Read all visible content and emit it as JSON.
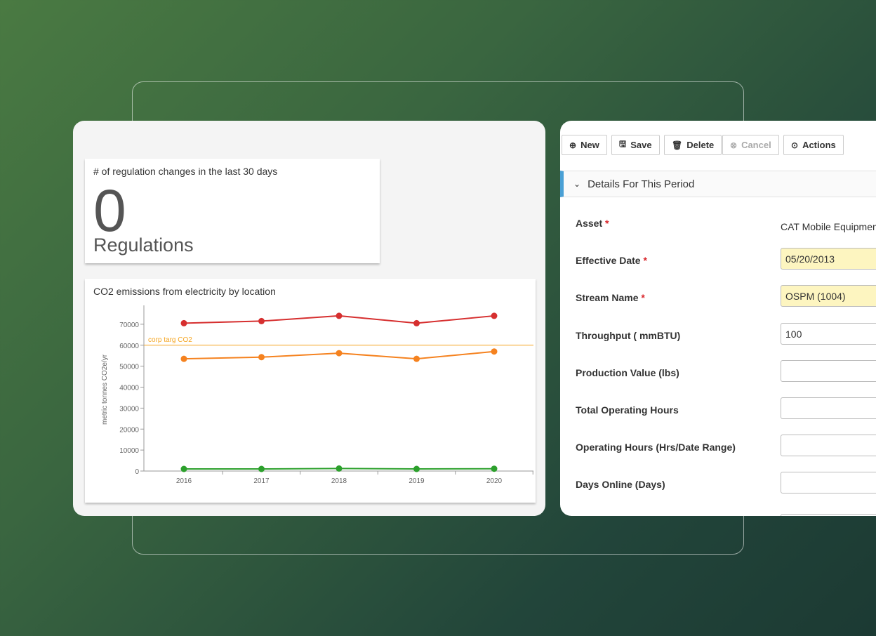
{
  "kpi": {
    "title": "# of regulation changes in the last 30 days",
    "value": 0,
    "unit": "Regulations"
  },
  "chart_data": {
    "type": "line",
    "title": "CO2 emissions from electricity by location",
    "y_label": "metric tonnes CO2e/yr",
    "categories": [
      "2016",
      "2017",
      "2018",
      "2019",
      "2020"
    ],
    "series": [
      {
        "color": "#d62f2f",
        "values": [
          70500,
          71500,
          74000,
          70500,
          74000
        ]
      },
      {
        "color": "#f5821f",
        "values": [
          53500,
          54300,
          56200,
          53500,
          57000
        ]
      },
      {
        "color": "#2ca02c",
        "values": [
          1000,
          1000,
          1200,
          1000,
          1100
        ]
      }
    ],
    "reference_line": {
      "value": 60000,
      "label": "corp targ CO2",
      "color": "#f5a623"
    },
    "ylim": [
      0,
      79000
    ],
    "yticks": [
      0,
      10000,
      20000,
      30000,
      40000,
      50000,
      60000,
      70000
    ]
  },
  "form": {
    "toolbar": [
      {
        "label": "New",
        "icon": "⊕"
      },
      {
        "label": "Save",
        "icon": "🖫"
      },
      {
        "label": "Delete",
        "icon": "🗑"
      },
      {
        "label": "Cancel",
        "icon": "⊗",
        "disabled": true
      },
      {
        "label": "Actions",
        "icon": "⊙"
      }
    ],
    "section": "Details For This Period",
    "fields": [
      {
        "label": "Asset",
        "required": "*",
        "value": "CAT Mobile Equipment",
        "kind": "static"
      },
      {
        "label": "Effective Date",
        "required": "*",
        "value": "05/20/2013",
        "highlight": true
      },
      {
        "label": "Stream Name",
        "required": "*",
        "value": "OSPM (1004)",
        "highlight": true
      },
      {
        "label": "Throughput ( mmBTU)",
        "value": "100"
      },
      {
        "label": "Production Value (lbs)"
      },
      {
        "label": "Total Operating Hours"
      },
      {
        "label": "Operating Hours (Hrs/Date Range)"
      },
      {
        "label": "Days Online (Days)"
      }
    ]
  }
}
